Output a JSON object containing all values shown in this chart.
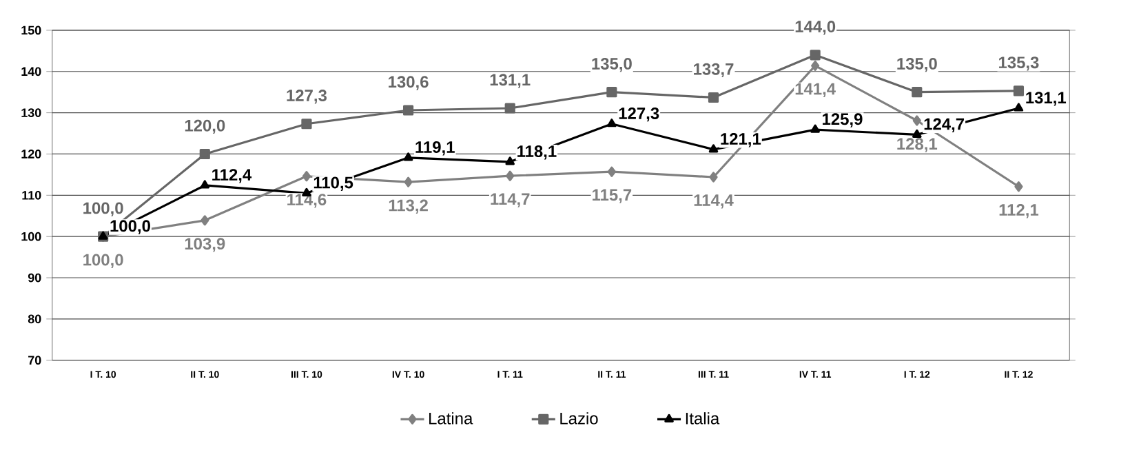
{
  "chart_data": {
    "type": "line",
    "categories": [
      "I T. 10",
      "II T. 10",
      "III T. 10",
      "IV T. 10",
      "I T. 11",
      "II T. 11",
      "III T. 11",
      "IV T. 11",
      "I T. 12",
      "II T. 12"
    ],
    "series": [
      {
        "name": "Latina",
        "color": "#808080",
        "marker": "diamond",
        "values": [
          100.0,
          103.9,
          114.6,
          113.2,
          114.7,
          115.7,
          114.4,
          141.4,
          128.1,
          112.1
        ],
        "value_labels": [
          "100,0",
          "103,9",
          "114,6",
          "113,2",
          "114,7",
          "115,7",
          "114,4",
          "141,4",
          "128,1",
          "112,1"
        ]
      },
      {
        "name": "Lazio",
        "color": "#666666",
        "marker": "square",
        "values": [
          100.0,
          120.0,
          127.3,
          130.6,
          131.1,
          135.0,
          133.7,
          144.0,
          135.0,
          135.3
        ],
        "value_labels": [
          "100,0",
          "120,0",
          "127,3",
          "130,6",
          "131,1",
          "135,0",
          "133,7",
          "144,0",
          "135,0",
          "135,3"
        ]
      },
      {
        "name": "Italia",
        "color": "#000000",
        "marker": "triangle",
        "values": [
          100.0,
          112.4,
          110.5,
          119.1,
          118.1,
          127.3,
          121.1,
          125.9,
          124.7,
          131.1
        ],
        "value_labels": [
          "100,0",
          "112,4",
          "110,5",
          "119,1",
          "118,1",
          "127,3",
          "121,1",
          "125,9",
          "124,7",
          "131,1"
        ]
      }
    ],
    "ylim": [
      70,
      150
    ],
    "yticks": [
      70,
      80,
      90,
      100,
      110,
      120,
      130,
      140,
      150
    ],
    "grid": "y",
    "legend": "bottom",
    "line_style": "solid"
  }
}
